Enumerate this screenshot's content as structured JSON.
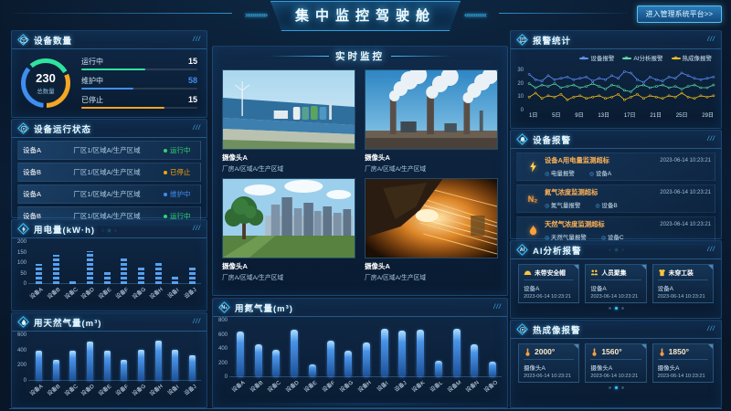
{
  "header": {
    "title": "集中监控驾驶舱",
    "platform_button": "进入管理系统平台>>",
    "left_decor": "»»»»»»",
    "right_decor": "««««««"
  },
  "decor": {
    "slashes": "///"
  },
  "panels": {
    "device_count": {
      "title": "设备数量",
      "total": "230",
      "total_label": "总数量",
      "stats": [
        {
          "label": "运行中",
          "value": "15",
          "color": "#2fe3a0"
        },
        {
          "label": "维护中",
          "value": "58",
          "color": "#3f8ef0"
        },
        {
          "label": "已停止",
          "value": "15",
          "color": "#f5a623"
        }
      ]
    },
    "device_status": {
      "title": "设备运行状态",
      "rows": [
        {
          "name": "设备A",
          "location": "厂区1/区域A/生产区域",
          "status": "运行中",
          "status_color": "#2ed573"
        },
        {
          "name": "设备B",
          "location": "厂区1/区域A/生产区域",
          "status": "已停止",
          "status_color": "#ffa502"
        },
        {
          "name": "设备A",
          "location": "厂区1/区域A/生产区域",
          "status": "维护中",
          "status_color": "#3f8ef0"
        },
        {
          "name": "设备B",
          "location": "厂区1/区域A/生产区域",
          "status": "运行中",
          "status_color": "#2ed573"
        }
      ]
    },
    "monitor": {
      "title": "实时监控",
      "cameras": [
        {
          "name": "摄像头A",
          "location": "厂房A/区域A/生产区域"
        },
        {
          "name": "摄像头A",
          "location": "厂房A/区域A/生产区域"
        },
        {
          "name": "摄像头A",
          "location": "厂房A/区域A/生产区域"
        },
        {
          "name": "摄像头A",
          "location": "厂房A/区域A/生产区域"
        }
      ]
    },
    "device_alarms": {
      "title": "设备报警",
      "items": [
        {
          "icon": "bolt-icon",
          "title": "设备A用电量监测超标",
          "time": "2023-06-14 10:23:21",
          "type": "电量报警",
          "device": "设备A"
        },
        {
          "icon": "n2-icon",
          "title": "氮气浓度监测超标",
          "time": "2023-06-14 10:23:21",
          "type": "氮气量报警",
          "device": "设备B"
        },
        {
          "icon": "flame-icon",
          "title": "天然气浓度监测超标",
          "time": "2023-06-14 10:23:21",
          "type": "天然气量报警",
          "device": "设备C"
        }
      ]
    },
    "ai_alarms": {
      "title": "AI分析报警",
      "items": [
        {
          "icon": "helmet-icon",
          "label": "未带安全帽",
          "device": "设备A",
          "time": "2023-06-14 10:23:21"
        },
        {
          "icon": "crowd-icon",
          "label": "人员聚集",
          "device": "设备A",
          "time": "2023-06-14 10:23:21"
        },
        {
          "icon": "uniform-icon",
          "label": "未穿工装",
          "device": "设备A",
          "time": "2023-06-14 10:23:21"
        }
      ]
    },
    "thermal_alarms": {
      "title": "热成像报警",
      "items": [
        {
          "icon": "thermometer-icon",
          "temp": "2000°",
          "camera": "摄像头A",
          "time": "2023-06-14 10:23:21"
        },
        {
          "icon": "thermometer-icon",
          "temp": "1560°",
          "camera": "摄像头A",
          "time": "2023-06-14 10:23:21"
        },
        {
          "icon": "thermometer-icon",
          "temp": "1850°",
          "camera": "摄像头A",
          "time": "2023-06-14 10:23:21"
        }
      ]
    }
  },
  "chart_data": [
    {
      "id": "power",
      "type": "bar",
      "title": "用电量(kW·h)",
      "categories": [
        "设备A",
        "设备B",
        "设备C",
        "设备D",
        "设备E",
        "设备F",
        "设备G",
        "设备H",
        "设备I",
        "设备J"
      ],
      "values": [
        95,
        140,
        15,
        155,
        65,
        125,
        80,
        110,
        35,
        80
      ],
      "xlabel": "",
      "ylabel": "",
      "ylim": [
        0,
        200
      ],
      "yticks": [
        0,
        50,
        100,
        150,
        200
      ],
      "grid": false
    },
    {
      "id": "gas",
      "type": "bar",
      "title": "用天然气量(m³)",
      "categories": [
        "设备A",
        "设备B",
        "设备C",
        "设备D",
        "设备E",
        "设备F",
        "设备G",
        "设备H",
        "设备I",
        "设备J"
      ],
      "values": [
        400,
        270,
        390,
        520,
        390,
        270,
        410,
        530,
        410,
        330
      ],
      "xlabel": "",
      "ylabel": "",
      "ylim": [
        0,
        600
      ],
      "yticks": [
        0,
        200,
        400,
        600
      ],
      "grid": false
    },
    {
      "id": "nitrogen",
      "type": "bar",
      "title": "用氮气量(m³)",
      "categories": [
        "设备A",
        "设备B",
        "设备C",
        "设备D",
        "设备E",
        "设备F",
        "设备G",
        "设备H",
        "设备I",
        "设备J",
        "设备K",
        "设备L",
        "设备M",
        "设备N",
        "设备O"
      ],
      "values": [
        650,
        470,
        390,
        670,
        180,
        510,
        380,
        490,
        680,
        660,
        670,
        230,
        690,
        470,
        220
      ],
      "xlabel": "",
      "ylabel": "",
      "ylim": [
        0,
        800
      ],
      "yticks": [
        0,
        200,
        400,
        600,
        800
      ],
      "grid": false
    },
    {
      "id": "alarm",
      "type": "line",
      "title": "报警统计",
      "x_ticks": [
        "1日",
        "5日",
        "9日",
        "13日",
        "17日",
        "21日",
        "25日",
        "29日"
      ],
      "ylim": [
        0,
        30
      ],
      "yticks": [
        0,
        10,
        20,
        30
      ],
      "legend_position": "top-right",
      "grid": false,
      "series": [
        {
          "name": "设备报警",
          "color": "#5b8ff9",
          "values": [
            25,
            21,
            20,
            24,
            21,
            22,
            23,
            21,
            22,
            23,
            20,
            22,
            21,
            24,
            22,
            27,
            26,
            21,
            19,
            23,
            21,
            20,
            23,
            22,
            26,
            24,
            22,
            21,
            22,
            23
          ]
        },
        {
          "name": "AI分析报警",
          "color": "#5ad8a6",
          "values": [
            18,
            15,
            17,
            16,
            18,
            15,
            16,
            17,
            15,
            16,
            18,
            16,
            14,
            17,
            16,
            13,
            12,
            16,
            17,
            15,
            16,
            17,
            15,
            16,
            14,
            16,
            17,
            15,
            15,
            17
          ]
        },
        {
          "name": "热成像报警",
          "color": "#f6bd16",
          "values": [
            8,
            11,
            7,
            9,
            8,
            10,
            6,
            8,
            9,
            7,
            8,
            9,
            7,
            8,
            10,
            6,
            8,
            10,
            7,
            9,
            8,
            7,
            9,
            8,
            11,
            8,
            7,
            9,
            8,
            9
          ]
        }
      ]
    }
  ]
}
